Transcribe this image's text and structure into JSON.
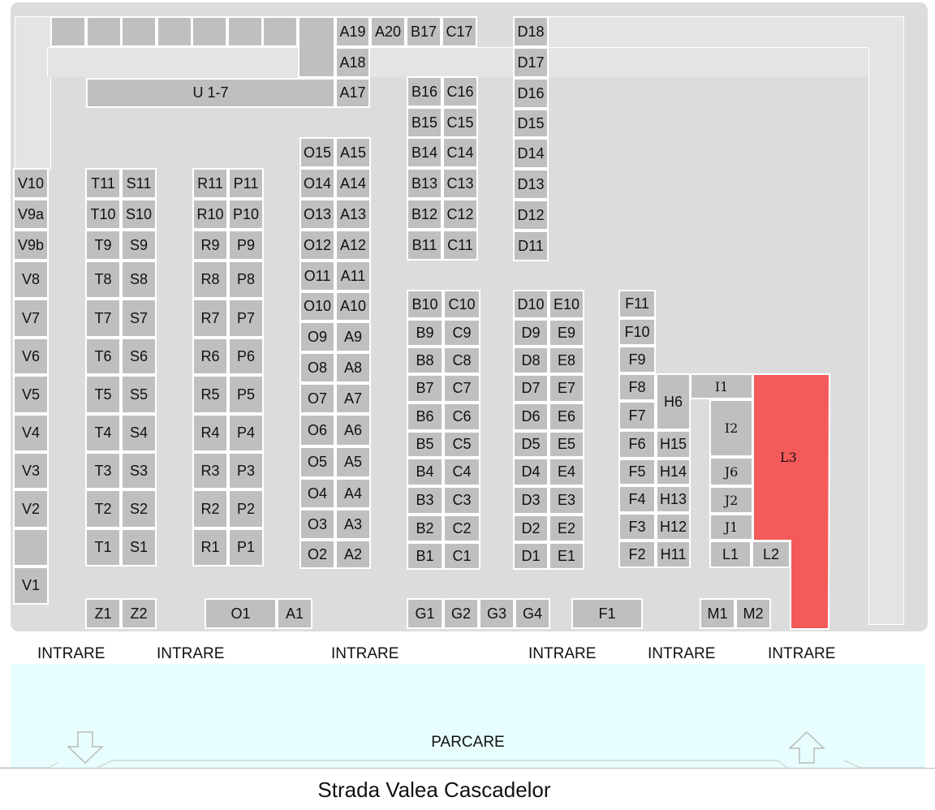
{
  "map": {
    "stalls": {
      "top_row_blank": [
        "",
        "",
        "",
        "",
        "",
        "",
        ""
      ],
      "A19": "A19",
      "A20": "A20",
      "B17": "B17",
      "C17": "C17",
      "D18": "D18",
      "A18": "A18",
      "D17": "D17",
      "U": "U 1-7",
      "A17": "A17",
      "D16": "D16",
      "B16": "B16",
      "C16": "C16",
      "B15": "B15",
      "C15": "C15",
      "D15": "D15",
      "O15": "O15",
      "A15": "A15",
      "B14": "B14",
      "C14": "C14",
      "D14": "D14",
      "O14": "O14",
      "A14": "A14",
      "B13": "B13",
      "C13": "C13",
      "D13": "D13",
      "O13": "O13",
      "A13": "A13",
      "B12": "B12",
      "C12": "C12",
      "D12": "D12",
      "O12": "O12",
      "A12": "A12",
      "B11": "B11",
      "C11": "C11",
      "D11": "D11",
      "O11": "O11",
      "A11": "A11",
      "O10": "O10",
      "A10": "A10",
      "O9": "O9",
      "A9": "A9",
      "O8": "O8",
      "A8": "A8",
      "O7": "O7",
      "A7": "A7",
      "O6": "O6",
      "A6": "A6",
      "O5": "O5",
      "A5": "A5",
      "O4": "O4",
      "A4": "A4",
      "O3": "O3",
      "A3": "A3",
      "O2": "O2",
      "A2": "A2",
      "V10": "V10",
      "V9a": "V9a",
      "V9b": "V9b",
      "V8": "V8",
      "V7": "V7",
      "V6": "V6",
      "V5": "V5",
      "V4": "V4",
      "V3": "V3",
      "V2": "V2",
      "V_blank": "",
      "V1": "V1",
      "T11": "T11",
      "S11": "S11",
      "T10": "T10",
      "S10": "S10",
      "T9": "T9",
      "S9": "S9",
      "T8": "T8",
      "S8": "S8",
      "T7": "T7",
      "S7": "S7",
      "T6": "T6",
      "S6": "S6",
      "T5": "T5",
      "S5": "S5",
      "T4": "T4",
      "S4": "S4",
      "T3": "T3",
      "S3": "S3",
      "T2": "T2",
      "S2": "S2",
      "T1": "T1",
      "S1": "S1",
      "R11": "R11",
      "P11": "P11",
      "R10": "R10",
      "P10": "P10",
      "R9": "R9",
      "P9": "P9",
      "R8": "R8",
      "P8": "P8",
      "R7": "R7",
      "P7": "P7",
      "R6": "R6",
      "P6": "P6",
      "R5": "R5",
      "P5": "P5",
      "R4": "R4",
      "P4": "P4",
      "R3": "R3",
      "P3": "P3",
      "R2": "R2",
      "P2": "P2",
      "R1": "R1",
      "P1": "P1",
      "B10": "B10",
      "C10": "C10",
      "B9": "B9",
      "C9": "C9",
      "B8": "B8",
      "C8": "C8",
      "B7": "B7",
      "C7": "C7",
      "B6": "B6",
      "C6": "C6",
      "B5": "B5",
      "C5": "C5",
      "B4": "B4",
      "C4": "C4",
      "B3": "B3",
      "C3": "C3",
      "B2": "B2",
      "C2": "C2",
      "B1": "B1",
      "C1": "C1",
      "D10": "D10",
      "E10": "E10",
      "D9": "D9",
      "E9": "E9",
      "D8": "D8",
      "E8": "E8",
      "D7": "D7",
      "E7": "E7",
      "D6": "D6",
      "E6": "E6",
      "D5": "D5",
      "E5": "E5",
      "D4": "D4",
      "E4": "E4",
      "D3": "D3",
      "E3": "E3",
      "D2": "D2",
      "E2": "E2",
      "D1": "D1",
      "E1": "E1",
      "F11": "F11",
      "F10": "F10",
      "F9": "F9",
      "F8": "F8",
      "F7": "F7",
      "F6": "F6",
      "F5": "F5",
      "F4": "F4",
      "F3": "F3",
      "F2": "F2",
      "H6": "H6",
      "H15": "H15",
      "H14": "H14",
      "H13": "H13",
      "H12": "H12",
      "H11": "H11",
      "I1": "I1",
      "I2": "I2",
      "J6": "J6",
      "J2": "J2",
      "J1": "J1",
      "L1": "L1",
      "L2": "L2",
      "L3": "L3",
      "Z1": "Z1",
      "Z2": "Z2",
      "O1": "O1",
      "A1": "A1",
      "G1": "G1",
      "G2": "G2",
      "G3": "G3",
      "G4": "G4",
      "F1": "F1",
      "M1": "M1",
      "M2": "M2"
    },
    "sold_color": "#f55a5a",
    "stall_color": "#bfbfbf"
  },
  "entrances": [
    "INTRARE",
    "INTRARE",
    "INTRARE",
    "INTRARE",
    "INTRARE",
    "INTRARE"
  ],
  "parking_label": "PARCARE",
  "street_label": "Strada Valea Cascadelor",
  "icons": {
    "exit": "arrow-down-outline-icon",
    "enter": "arrow-up-outline-icon"
  }
}
